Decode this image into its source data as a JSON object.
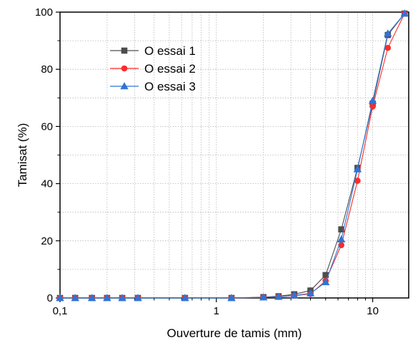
{
  "chart_data": {
    "type": "line",
    "title": "",
    "xlabel": "Ouverture de tamis (mm)",
    "ylabel": "Tamisat (%)",
    "x_scale": "log",
    "xlim": [
      0.1,
      17
    ],
    "ylim": [
      0,
      100
    ],
    "x_ticks": [
      {
        "value": 0.1,
        "label": "0,1"
      },
      {
        "value": 1,
        "label": "1"
      },
      {
        "value": 10,
        "label": "10"
      }
    ],
    "y_ticks": [
      {
        "value": 0,
        "label": "0"
      },
      {
        "value": 20,
        "label": "20"
      },
      {
        "value": 40,
        "label": "40"
      },
      {
        "value": 60,
        "label": "60"
      },
      {
        "value": 80,
        "label": "80"
      },
      {
        "value": 100,
        "label": "100"
      }
    ],
    "grid": true,
    "legend_position": "top-left",
    "x": [
      0.1,
      0.125,
      0.16,
      0.2,
      0.25,
      0.315,
      0.63,
      1.25,
      2,
      2.5,
      3.15,
      4,
      5,
      6.3,
      8,
      10,
      12.5,
      16
    ],
    "series": [
      {
        "name": "O essai 1",
        "color": "#4d4d4d",
        "marker": "square",
        "values": [
          0,
          0,
          0,
          0,
          0,
          0,
          0,
          0,
          0.3,
          0.6,
          1.3,
          2.6,
          8,
          24,
          45.5,
          68,
          92,
          99.5
        ]
      },
      {
        "name": "O essai 2",
        "color": "#ff2b2b",
        "marker": "circle",
        "values": [
          0,
          0,
          0,
          0,
          0,
          0,
          0,
          0,
          0.2,
          0.4,
          0.8,
          1.4,
          6,
          18.5,
          41,
          67,
          87.5,
          99.5
        ]
      },
      {
        "name": "O essai 3",
        "color": "#2f74d6",
        "marker": "triangle",
        "values": [
          0,
          0,
          0,
          0,
          0,
          0,
          0,
          0,
          0.2,
          0.4,
          0.9,
          1.6,
          5.5,
          20.5,
          45,
          69,
          92.5,
          99.5
        ]
      }
    ]
  }
}
